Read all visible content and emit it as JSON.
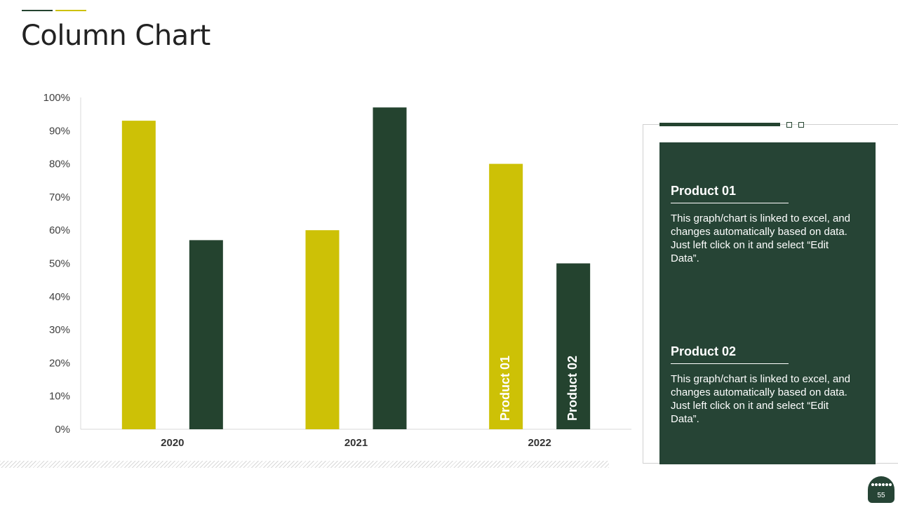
{
  "slide": {
    "title": "Column Chart",
    "page_number": "55"
  },
  "colors": {
    "gold": "#cdc106",
    "dark_green": "#24432f",
    "panel_green": "#264435"
  },
  "chart_data": {
    "type": "bar",
    "categories": [
      "2020",
      "2021",
      "2022"
    ],
    "series": [
      {
        "name": "Product 01",
        "values": [
          93,
          60,
          80
        ],
        "color": "#cdc106"
      },
      {
        "name": "Product 02",
        "values": [
          57,
          97,
          50
        ],
        "color": "#24432f"
      }
    ],
    "y_ticks": [
      "0%",
      "10%",
      "20%",
      "30%",
      "40%",
      "50%",
      "60%",
      "70%",
      "80%",
      "90%",
      "100%"
    ],
    "ylim": [
      0,
      100
    ],
    "y_unit": "%",
    "grid": false,
    "legend": "none"
  },
  "panel": {
    "products": [
      {
        "heading": "Product 01",
        "text": "This graph/chart is linked to excel, and changes automatically based on data. Just left click on it and select “Edit Data”."
      },
      {
        "heading": "Product 02",
        "text": "This graph/chart is linked to excel, and changes automatically based on data. Just left click on it and select “Edit Data”."
      }
    ]
  }
}
